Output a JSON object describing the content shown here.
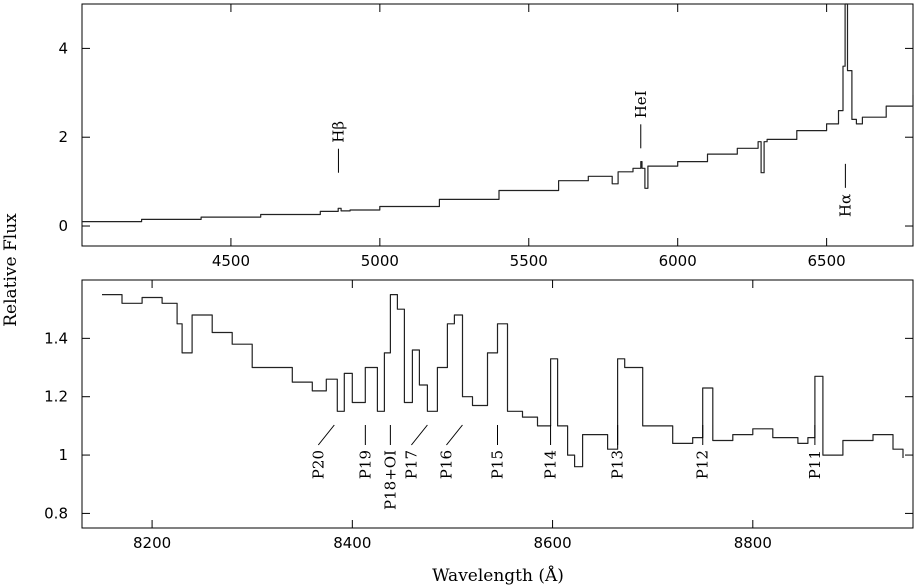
{
  "chart_data": [
    {
      "type": "line",
      "panel": "top",
      "xlim": [
        4000,
        6790
      ],
      "ylim": [
        -0.45,
        5.0
      ],
      "xticks": [
        4500,
        5000,
        5500,
        6000,
        6500
      ],
      "yticks": [
        0,
        2,
        4
      ],
      "series": [
        {
          "x": [
            4000,
            4200,
            4400,
            4600,
            4800,
            4860,
            4870,
            4900,
            5000,
            5200,
            5400,
            5600,
            5700,
            5780,
            5800,
            5850,
            5876,
            5880,
            5890,
            5900,
            6000,
            6100,
            6200,
            6270,
            6280,
            6290,
            6300,
            6400,
            6500,
            6540,
            6555,
            6562,
            6570,
            6585,
            6600,
            6620,
            6700,
            6790
          ],
          "y": [
            0.1,
            0.15,
            0.2,
            0.26,
            0.33,
            0.4,
            0.34,
            0.36,
            0.44,
            0.6,
            0.8,
            1.02,
            1.12,
            0.95,
            1.22,
            1.3,
            1.45,
            1.3,
            0.85,
            1.35,
            1.45,
            1.62,
            1.75,
            1.9,
            1.2,
            1.9,
            1.95,
            2.15,
            2.3,
            2.6,
            3.6,
            5.0,
            3.5,
            2.4,
            2.3,
            2.45,
            2.7,
            2.95
          ]
        }
      ],
      "annotations": [
        {
          "text": "Hβ",
          "x": 4861,
          "y": 1.2,
          "side": "above"
        },
        {
          "text": "HeI",
          "x": 5876,
          "y": 1.75,
          "side": "above"
        },
        {
          "text": "Hα",
          "x": 6563,
          "y": 1.4,
          "side": "below"
        }
      ]
    },
    {
      "type": "line",
      "panel": "bottom",
      "xlim": [
        8130,
        8960
      ],
      "ylim": [
        0.75,
        1.6
      ],
      "xticks": [
        8200,
        8400,
        8600,
        8800
      ],
      "yticks": [
        0.8,
        1,
        1.2,
        1.4
      ],
      "xlabel": "Wavelength (Å)",
      "ylabel": "Relative Flux",
      "series": [
        {
          "x": [
            8150,
            8170,
            8190,
            8210,
            8225,
            8230,
            8240,
            8260,
            8280,
            8300,
            8320,
            8340,
            8360,
            8374,
            8385,
            8392,
            8400,
            8413,
            8425,
            8432,
            8438,
            8445,
            8452,
            8460,
            8467,
            8475,
            8485,
            8495,
            8502,
            8510,
            8520,
            8535,
            8545,
            8555,
            8570,
            8585,
            8598,
            8605,
            8615,
            8622,
            8630,
            8640,
            8655,
            8665,
            8672,
            8690,
            8720,
            8740,
            8750,
            8760,
            8780,
            8800,
            8820,
            8845,
            8855,
            8862,
            8870,
            8890,
            8920,
            8940,
            8950
          ],
          "y": [
            1.55,
            1.52,
            1.54,
            1.52,
            1.45,
            1.35,
            1.48,
            1.42,
            1.38,
            1.3,
            1.3,
            1.25,
            1.22,
            1.26,
            1.15,
            1.28,
            1.18,
            1.3,
            1.15,
            1.35,
            1.55,
            1.5,
            1.18,
            1.36,
            1.24,
            1.15,
            1.3,
            1.45,
            1.48,
            1.2,
            1.17,
            1.35,
            1.45,
            1.15,
            1.13,
            1.1,
            1.33,
            1.1,
            1.0,
            0.96,
            1.07,
            1.07,
            1.02,
            1.33,
            1.3,
            1.1,
            1.04,
            1.06,
            1.23,
            1.05,
            1.07,
            1.09,
            1.06,
            1.04,
            1.06,
            1.27,
            1.0,
            1.05,
            1.07,
            1.02,
            0.99
          ]
        }
      ],
      "annotations": [
        {
          "text": "P20",
          "x": 8374,
          "side": "below",
          "diag": true
        },
        {
          "text": "P19",
          "x": 8413,
          "side": "below"
        },
        {
          "text": "P18+OI",
          "x": 8438,
          "side": "below"
        },
        {
          "text": "P17",
          "x": 8467,
          "side": "below",
          "diag": true
        },
        {
          "text": "P16",
          "x": 8502,
          "side": "below",
          "diag": true
        },
        {
          "text": "P15",
          "x": 8545,
          "side": "below"
        },
        {
          "text": "P14",
          "x": 8598,
          "side": "below"
        },
        {
          "text": "P13",
          "x": 8665,
          "side": "below"
        },
        {
          "text": "P12",
          "x": 8750,
          "side": "below"
        },
        {
          "text": "P11",
          "x": 8862,
          "side": "below"
        }
      ]
    }
  ]
}
